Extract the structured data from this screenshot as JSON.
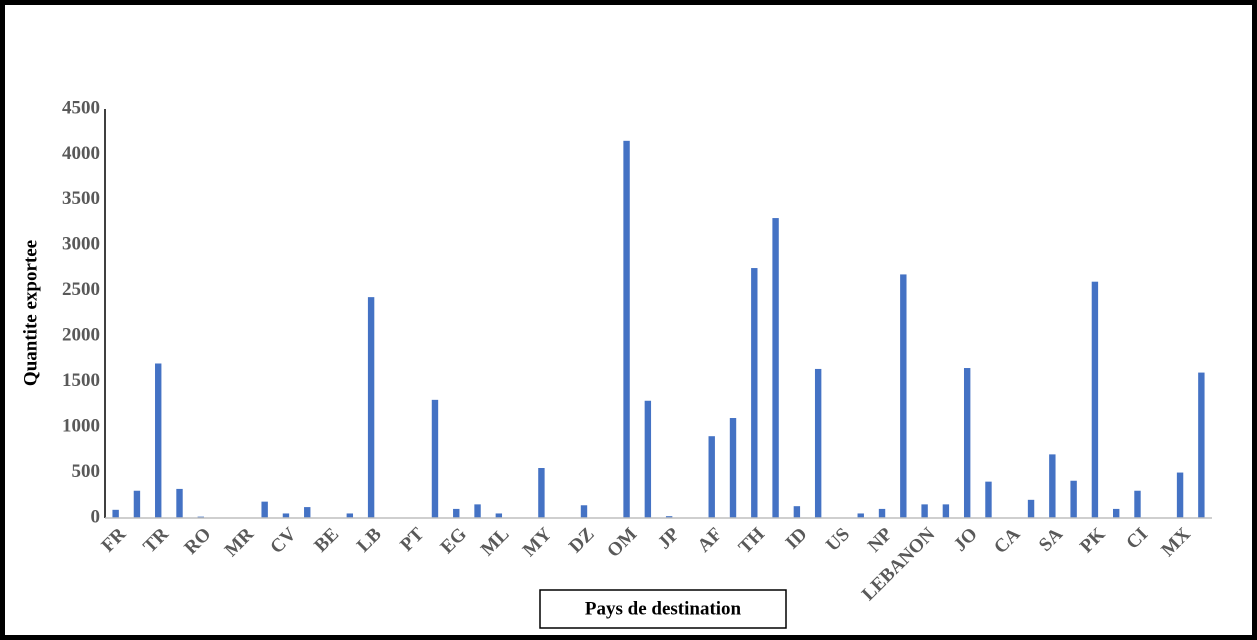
{
  "chart_data": {
    "type": "bar",
    "y_label": "Quantite exportee",
    "x_label": "Pays de destination",
    "categories": [
      "FR",
      null,
      "TR",
      null,
      "RO",
      null,
      "MR",
      null,
      "CV",
      null,
      "BE",
      null,
      "LB",
      null,
      "PT",
      null,
      "EG",
      null,
      "ML",
      null,
      "MY",
      null,
      "DZ",
      null,
      "OM",
      null,
      "JP",
      null,
      "AF",
      null,
      "TH",
      null,
      "ID",
      null,
      "US",
      null,
      "NP",
      null,
      "LEBANON",
      null,
      "JO",
      null,
      "CA",
      null,
      "SA",
      null,
      "PK",
      null,
      "CI",
      null,
      "MX",
      null
    ],
    "values": [
      90,
      300,
      1700,
      320,
      15,
      0,
      0,
      180,
      50,
      120,
      0,
      50,
      2430,
      0,
      0,
      1300,
      100,
      150,
      50,
      0,
      550,
      0,
      140,
      0,
      4150,
      1290,
      20,
      0,
      900,
      1100,
      2750,
      3300,
      130,
      1640,
      0,
      50,
      100,
      2680,
      150,
      150,
      1650,
      400,
      0,
      200,
      700,
      410,
      2600,
      100,
      300,
      0,
      500,
      1600
    ],
    "color": "#4472c4",
    "ylim": [
      0,
      4500
    ],
    "yticks": [
      0,
      500,
      1000,
      1500,
      2000,
      2500,
      3000,
      3500,
      4000,
      4500
    ],
    "grid": false
  }
}
